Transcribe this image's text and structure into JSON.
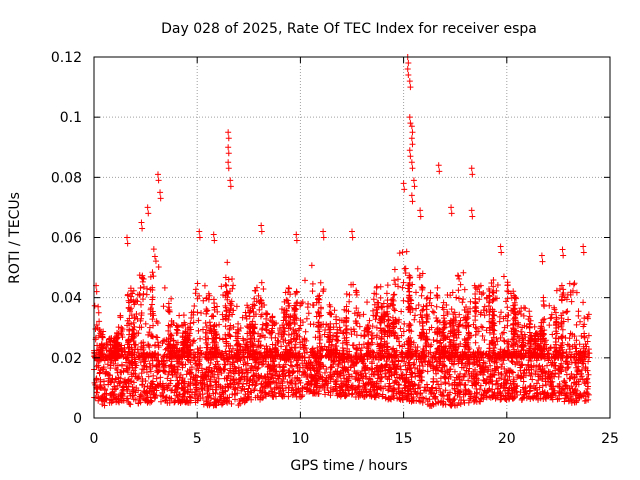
{
  "chart_data": {
    "type": "scatter",
    "title": "Day 028 of 2025, Rate Of TEC Index for receiver espa",
    "xlabel": "GPS time / hours",
    "ylabel": "ROTI / TECUs",
    "xlim": [
      0,
      25
    ],
    "ylim": [
      0,
      0.12
    ],
    "x_ticks": [
      0,
      5,
      10,
      15,
      20,
      25
    ],
    "x_tick_labels": [
      "0",
      "5",
      "10",
      "15",
      "20",
      "25"
    ],
    "y_ticks": [
      0,
      0.02,
      0.04,
      0.06,
      0.08,
      0.1,
      0.12
    ],
    "y_tick_labels": [
      "0",
      "0.02",
      "0.04",
      "0.06",
      "0.08",
      "0.1",
      "0.12"
    ],
    "grid": true,
    "marker": "+",
    "marker_color": "#ff0000",
    "data_span_hours": [
      0,
      24
    ],
    "baseline_band": [
      0.005,
      0.02
    ],
    "series": [
      {
        "name": "ROTI",
        "notable_points": [
          {
            "x": 0.1,
            "y": 0.044
          },
          {
            "x": 0.2,
            "y": 0.037
          },
          {
            "x": 1.6,
            "y": 0.06
          },
          {
            "x": 2.3,
            "y": 0.065
          },
          {
            "x": 2.6,
            "y": 0.07
          },
          {
            "x": 3.1,
            "y": 0.081
          },
          {
            "x": 3.2,
            "y": 0.075
          },
          {
            "x": 5.1,
            "y": 0.062
          },
          {
            "x": 5.8,
            "y": 0.061
          },
          {
            "x": 6.5,
            "y": 0.095
          },
          {
            "x": 6.5,
            "y": 0.09
          },
          {
            "x": 6.5,
            "y": 0.085
          },
          {
            "x": 6.6,
            "y": 0.079
          },
          {
            "x": 8.1,
            "y": 0.064
          },
          {
            "x": 9.8,
            "y": 0.061
          },
          {
            "x": 11.1,
            "y": 0.062
          },
          {
            "x": 12.5,
            "y": 0.062
          },
          {
            "x": 15.0,
            "y": 0.078
          },
          {
            "x": 15.2,
            "y": 0.12
          },
          {
            "x": 15.2,
            "y": 0.116
          },
          {
            "x": 15.3,
            "y": 0.112
          },
          {
            "x": 15.3,
            "y": 0.1
          },
          {
            "x": 15.4,
            "y": 0.097
          },
          {
            "x": 15.4,
            "y": 0.093
          },
          {
            "x": 15.3,
            "y": 0.089
          },
          {
            "x": 15.4,
            "y": 0.085
          },
          {
            "x": 15.5,
            "y": 0.079
          },
          {
            "x": 15.4,
            "y": 0.074
          },
          {
            "x": 15.8,
            "y": 0.069
          },
          {
            "x": 16.7,
            "y": 0.084
          },
          {
            "x": 17.3,
            "y": 0.07
          },
          {
            "x": 18.3,
            "y": 0.083
          },
          {
            "x": 18.3,
            "y": 0.069
          },
          {
            "x": 19.7,
            "y": 0.057
          },
          {
            "x": 21.7,
            "y": 0.054
          },
          {
            "x": 22.7,
            "y": 0.056
          },
          {
            "x": 23.7,
            "y": 0.057
          }
        ],
        "envelope": {
          "x": [
            0,
            0.5,
            1,
            1.5,
            2,
            2.5,
            3,
            3.5,
            4,
            4.5,
            5,
            5.5,
            6,
            6.5,
            7,
            7.5,
            8,
            8.5,
            9,
            9.5,
            10,
            10.5,
            11,
            11.5,
            12,
            12.5,
            13,
            13.5,
            14,
            14.5,
            15,
            15.5,
            16,
            16.5,
            17,
            17.5,
            18,
            18.5,
            19,
            19.5,
            20,
            20.5,
            21,
            21.5,
            22,
            22.5,
            23,
            23.5,
            24
          ],
          "high": [
            0.04,
            0.028,
            0.026,
            0.042,
            0.045,
            0.055,
            0.06,
            0.045,
            0.035,
            0.033,
            0.045,
            0.045,
            0.04,
            0.055,
            0.035,
            0.04,
            0.05,
            0.035,
            0.035,
            0.045,
            0.042,
            0.055,
            0.05,
            0.042,
            0.038,
            0.045,
            0.04,
            0.042,
            0.045,
            0.048,
            0.06,
            0.05,
            0.05,
            0.045,
            0.04,
            0.045,
            0.05,
            0.045,
            0.045,
            0.048,
            0.047,
            0.04,
            0.038,
            0.035,
            0.045,
            0.042,
            0.048,
            0.045,
            0.04
          ],
          "low": [
            0.006,
            0.004,
            0.005,
            0.005,
            0.004,
            0.005,
            0.005,
            0.005,
            0.005,
            0.005,
            0.005,
            0.004,
            0.004,
            0.005,
            0.004,
            0.006,
            0.006,
            0.007,
            0.007,
            0.007,
            0.007,
            0.008,
            0.008,
            0.007,
            0.007,
            0.007,
            0.007,
            0.007,
            0.006,
            0.006,
            0.006,
            0.005,
            0.004,
            0.004,
            0.004,
            0.004,
            0.005,
            0.005,
            0.006,
            0.006,
            0.006,
            0.006,
            0.006,
            0.006,
            0.006,
            0.006,
            0.005,
            0.005,
            0.006
          ]
        }
      }
    ]
  }
}
